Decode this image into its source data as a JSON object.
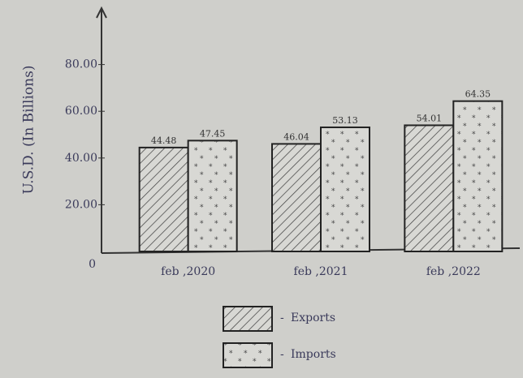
{
  "chart_data": {
    "type": "bar",
    "y_label": "U.S.D. (In Billions)",
    "categories": [
      "feb ,2020",
      "feb ,2021",
      "feb ,2022"
    ],
    "series": [
      {
        "name": "Exports",
        "color": "#555555",
        "values": [
          44.48,
          46.04,
          54.01
        ]
      },
      {
        "name": "Imports",
        "color": "#555555",
        "values": [
          47.45,
          53.13,
          64.35
        ]
      }
    ],
    "ylim": [
      0,
      100
    ],
    "yticks": [
      0,
      {
        "value": 20,
        "label": "20.00"
      },
      {
        "value": 40,
        "label": "40.00"
      },
      {
        "value": 60,
        "label": "60.00"
      },
      {
        "value": 80,
        "label": "80.00"
      }
    ],
    "grid": false
  }
}
